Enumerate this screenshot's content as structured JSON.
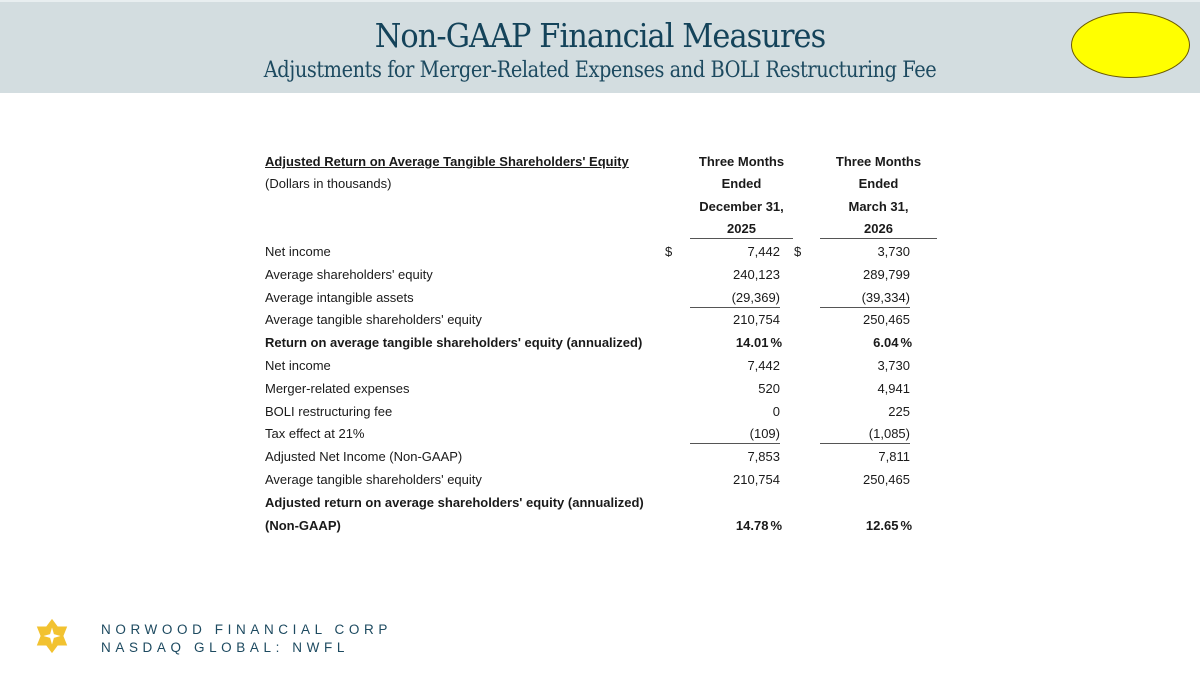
{
  "header": {
    "title": "Non-GAAP Financial Measures",
    "subtitle": "Adjustments for Merger-Related Expenses and BOLI Restructuring Fee",
    "badge_color": "#ffff00"
  },
  "table": {
    "title": "Adjusted Return on Average Tangible Shareholders' Equity",
    "units": "(Dollars in thousands)",
    "col1": [
      "Three Months",
      "Ended",
      "December 31,",
      "2025"
    ],
    "col2": [
      "Three Months",
      "Ended",
      "March 31,",
      "2026"
    ],
    "rows": [
      {
        "label": "Net income",
        "v1": "7,442",
        "v2": "3,730",
        "dollar": "$"
      },
      {
        "label": "Average shareholders' equity",
        "v1": "240,123",
        "v2": "289,799"
      },
      {
        "label": "Average intangible assets",
        "v1": "(29,369)",
        "v2": "(39,334)",
        "underline": true
      },
      {
        "label": "Average tangible shareholders' equity",
        "v1": "210,754",
        "v2": "250,465"
      },
      {
        "label": "Return on average tangible shareholders' equity (annualized)",
        "v1": "14.01",
        "v2": "6.04",
        "pct": "%",
        "bold": true
      },
      {
        "label": "Net income",
        "v1": "7,442",
        "v2": "3,730"
      },
      {
        "label": "Merger-related expenses",
        "v1": "520",
        "v2": "4,941"
      },
      {
        "label": "BOLI restructuring fee",
        "v1": "0",
        "v2": "225"
      },
      {
        "label": "Tax effect at 21%",
        "v1": "(109)",
        "v2": "(1,085)",
        "underline": true
      },
      {
        "label": "Adjusted Net Income (Non-GAAP)",
        "v1": "7,853",
        "v2": "7,811"
      },
      {
        "label": "Average tangible shareholders' equity",
        "v1": "210,754",
        "v2": "250,465"
      },
      {
        "label": "Adjusted return on average shareholders' equity (annualized)",
        "bold": true
      },
      {
        "label": "(Non-GAAP)",
        "v1": "14.78",
        "v2": "12.65",
        "pct": "%",
        "bold": true
      }
    ]
  },
  "footer": {
    "company": "NORWOOD FINANCIAL CORP",
    "ticker": "NASDAQ GLOBAL: NWFL",
    "logo_color": "#f2c230"
  }
}
